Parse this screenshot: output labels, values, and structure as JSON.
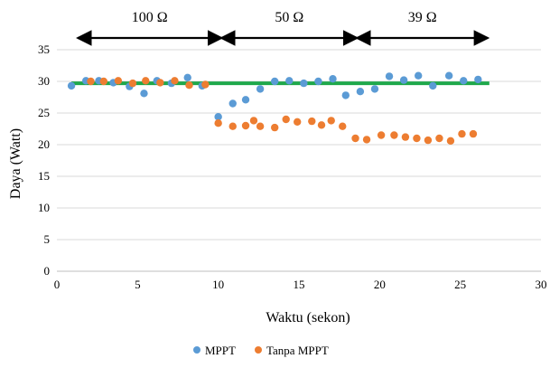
{
  "chart_data": {
    "type": "scatter",
    "title": "",
    "xlabel": "Waktu (sekon)",
    "ylabel": "Daya (Watt)",
    "xlim": [
      0,
      30
    ],
    "ylim": [
      0,
      35
    ],
    "x_ticks": [
      0,
      5,
      10,
      15,
      20,
      25,
      30
    ],
    "y_ticks": [
      0,
      5,
      10,
      15,
      20,
      25,
      30,
      35
    ],
    "grid": "horizontal",
    "legend_position": "bottom",
    "regions": [
      {
        "label": "100 Ω",
        "x_start": 1.3,
        "x_end": 10.2
      },
      {
        "label": "50 Ω",
        "x_start": 10.2,
        "x_end": 18.6
      },
      {
        "label": "39 Ω",
        "x_start": 18.6,
        "x_end": 26.7
      }
    ],
    "reference_line": {
      "y": 29.7,
      "x_start": 0.9,
      "x_end": 26.8,
      "color": "#1fa84b"
    },
    "series": [
      {
        "name": "MPPT",
        "color": "#5b9bd5",
        "points": [
          [
            0.9,
            29.3
          ],
          [
            1.8,
            30.1
          ],
          [
            2.6,
            30.1
          ],
          [
            3.5,
            29.8
          ],
          [
            4.5,
            29.2
          ],
          [
            5.4,
            28.1
          ],
          [
            6.2,
            30.1
          ],
          [
            7.1,
            29.7
          ],
          [
            8.1,
            30.6
          ],
          [
            9.0,
            29.3
          ],
          [
            10.0,
            24.4
          ],
          [
            10.9,
            26.5
          ],
          [
            11.7,
            27.1
          ],
          [
            12.6,
            28.8
          ],
          [
            13.5,
            30.0
          ],
          [
            14.4,
            30.1
          ],
          [
            15.3,
            29.7
          ],
          [
            16.2,
            30.0
          ],
          [
            17.1,
            30.4
          ],
          [
            17.9,
            27.8
          ],
          [
            18.8,
            28.4
          ],
          [
            19.7,
            28.8
          ],
          [
            20.6,
            30.8
          ],
          [
            21.5,
            30.2
          ],
          [
            22.4,
            30.9
          ],
          [
            23.3,
            29.3
          ],
          [
            24.3,
            30.9
          ],
          [
            25.2,
            30.1
          ],
          [
            26.1,
            30.3
          ]
        ]
      },
      {
        "name": "Tanpa MPPT",
        "color": "#ed7d31",
        "points": [
          [
            2.1,
            30.0
          ],
          [
            2.9,
            30.0
          ],
          [
            3.8,
            30.1
          ],
          [
            4.7,
            29.7
          ],
          [
            5.5,
            30.1
          ],
          [
            6.4,
            29.8
          ],
          [
            7.3,
            30.1
          ],
          [
            8.2,
            29.4
          ],
          [
            9.2,
            29.5
          ],
          [
            10.0,
            23.4
          ],
          [
            10.9,
            22.9
          ],
          [
            11.7,
            23.0
          ],
          [
            12.2,
            23.8
          ],
          [
            12.6,
            22.9
          ],
          [
            13.5,
            22.7
          ],
          [
            14.2,
            24.0
          ],
          [
            14.9,
            23.6
          ],
          [
            15.8,
            23.7
          ],
          [
            16.4,
            23.1
          ],
          [
            17.0,
            23.8
          ],
          [
            17.7,
            22.9
          ],
          [
            18.5,
            21.0
          ],
          [
            19.2,
            20.8
          ],
          [
            20.1,
            21.5
          ],
          [
            20.9,
            21.5
          ],
          [
            21.6,
            21.2
          ],
          [
            22.3,
            21.0
          ],
          [
            23.0,
            20.7
          ],
          [
            23.7,
            21.0
          ],
          [
            24.4,
            20.6
          ],
          [
            25.1,
            21.7
          ],
          [
            25.8,
            21.7
          ]
        ]
      }
    ]
  }
}
